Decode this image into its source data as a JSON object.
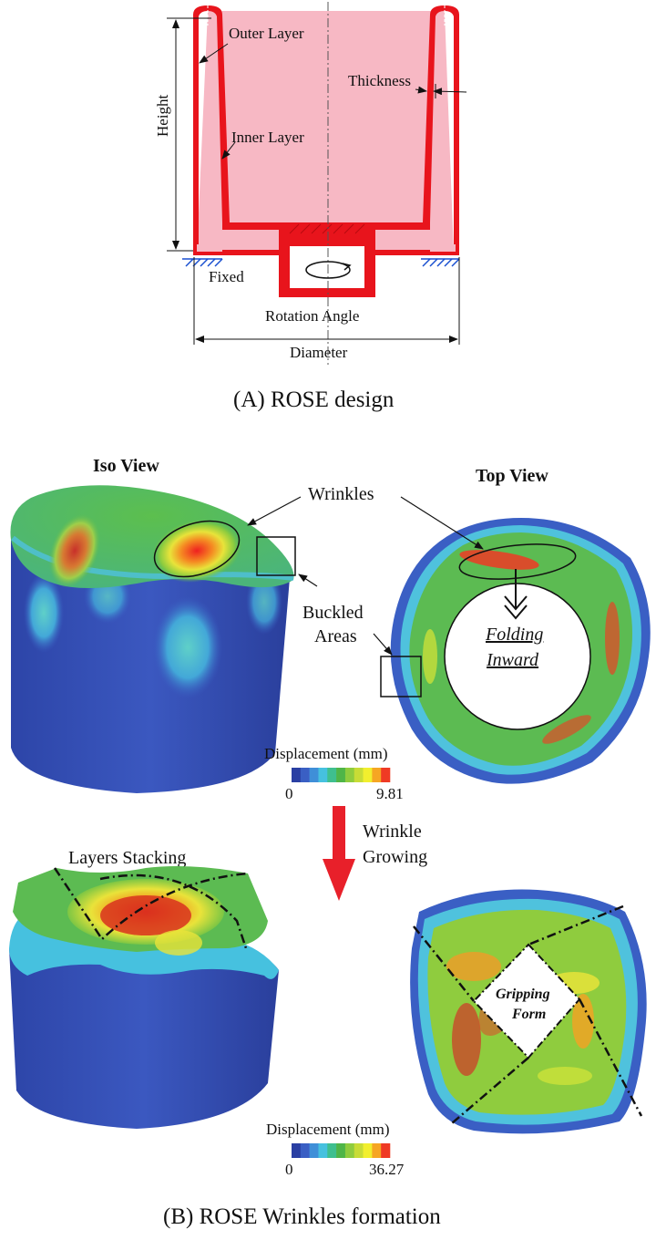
{
  "panel_a": {
    "labels": {
      "outer_layer": "Outer Layer",
      "inner_layer": "Inner Layer",
      "thickness": "Thickness",
      "height": "Height",
      "fixed": "Fixed",
      "rotation_angle": "Rotation Angle",
      "diameter": "Diameter"
    },
    "caption": "(A) ROSE design"
  },
  "panel_b": {
    "iso_view": "Iso View",
    "top_view": "Top View",
    "wrinkles": "Wrinkles",
    "buckled_areas_line1": "Buckled",
    "buckled_areas_line2": "Areas",
    "folding_inward_line1": "Folding",
    "folding_inward_line2": "Inward",
    "legend1": {
      "title": "Displacement (mm)",
      "min": "0",
      "max": "9.81"
    },
    "wrinkle_growing_line1": "Wrinkle",
    "wrinkle_growing_line2": "Growing",
    "layers_stacking": "Layers Stacking",
    "gripping_form_line1": "Gripping",
    "gripping_form_line2": "Form",
    "legend2": {
      "title": "Displacement (mm)",
      "min": "0",
      "max": "36.27"
    },
    "caption": "(B) ROSE Wrinkles formation"
  },
  "colors": {
    "cup_fill": "#f7b8c4",
    "wall_red": "#e8141c",
    "arrow_red": "#e8202a",
    "legend_scale": [
      "#2a3fa3",
      "#3a5fc4",
      "#3f8fd8",
      "#46c1df",
      "#3fbf8f",
      "#4fb548",
      "#8fcc3e",
      "#c8dc36",
      "#f2ef2e",
      "#f6a623",
      "#ef3a24"
    ]
  }
}
